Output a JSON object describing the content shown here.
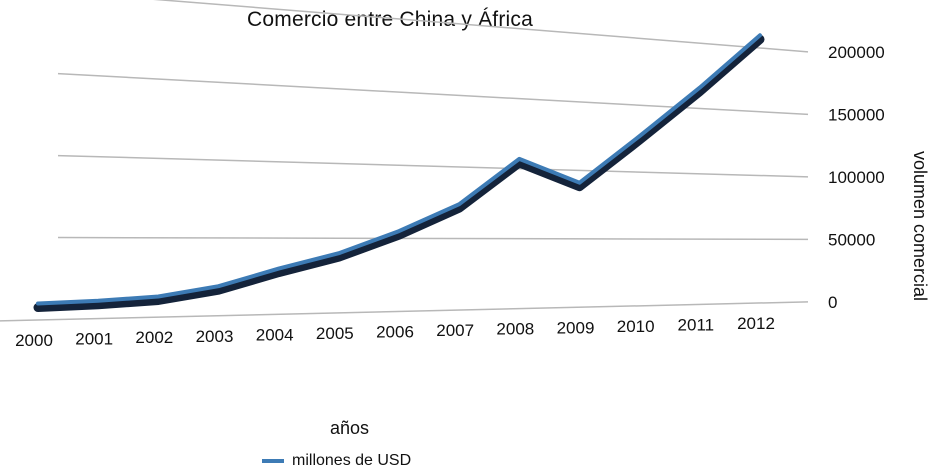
{
  "chart_data": {
    "type": "line",
    "title": "Comercio entre China y África",
    "xlabel": "años",
    "ylabel": "volumen comercial",
    "categories": [
      "2000",
      "2001",
      "2002",
      "2003",
      "2004",
      "2005",
      "2006",
      "2007",
      "2008",
      "2009",
      "2010",
      "2011",
      "2012"
    ],
    "series": [
      {
        "name": "millones de USD",
        "values": [
          10000,
          11000,
          13000,
          19000,
          30000,
          40000,
          55000,
          74000,
          107000,
          91000,
          127000,
          166000,
          210000
        ],
        "color": "#3d7bb5"
      }
    ],
    "ylim": [
      0,
      200000
    ],
    "yticks": [
      "0",
      "50000",
      "100000",
      "150000",
      "200000"
    ],
    "grid": true,
    "legend_position": "bottom"
  }
}
